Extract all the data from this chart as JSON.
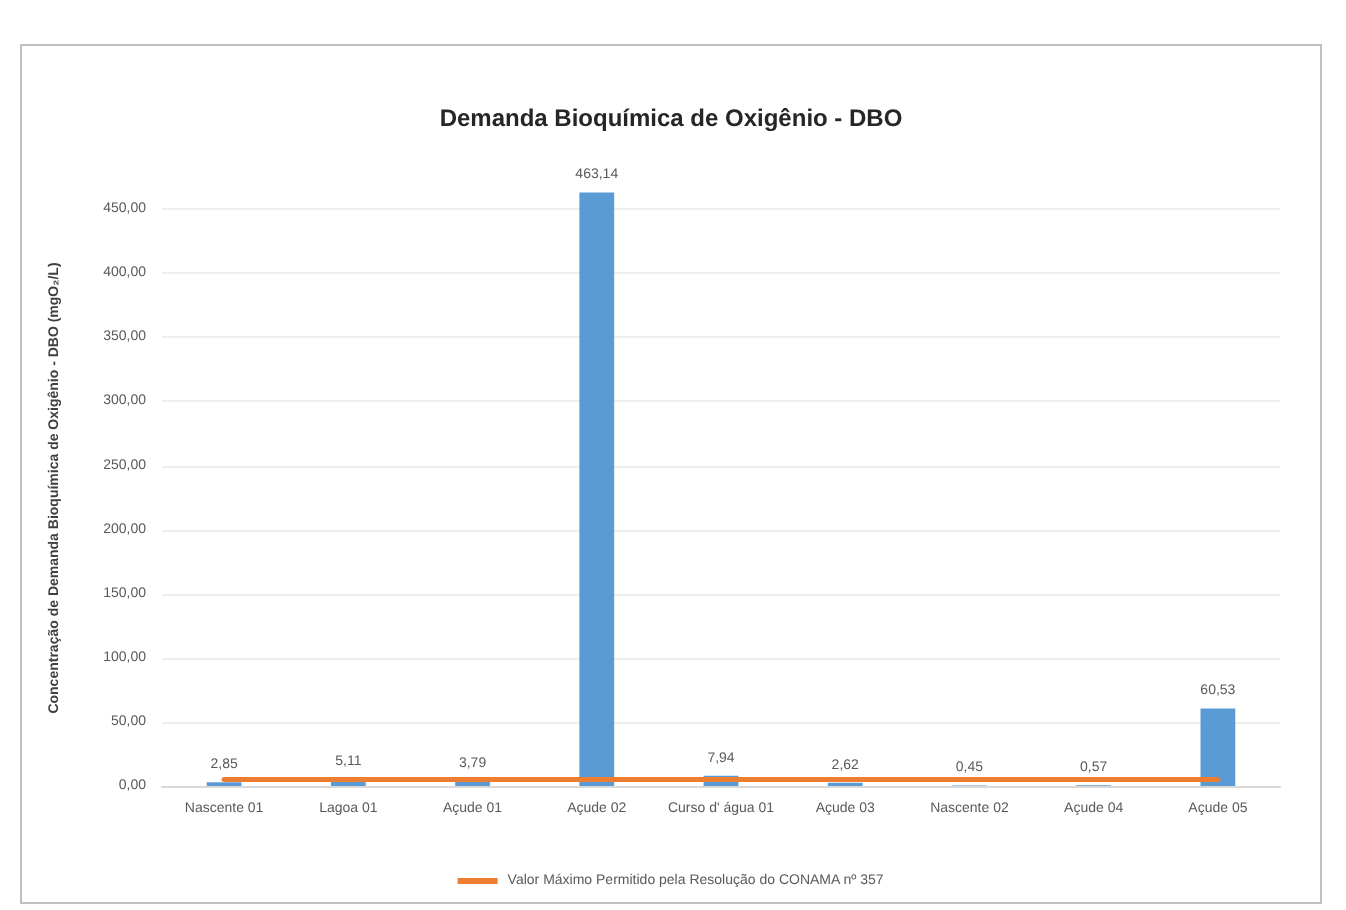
{
  "chart_data": {
    "type": "bar",
    "title": "Demanda Bioquímica de Oxigênio - DBO",
    "ylabel": "Concentração de Demanda Bioquímica de Oxigênio - DBO (mgO₂/L)",
    "categories": [
      "Nascente 01",
      "Lagoa 01",
      "Açude 01",
      "Açude 02",
      "Curso d' água 01",
      "Açude 03",
      "Nascente 02",
      "Açude 04",
      "Açude 05"
    ],
    "series": [
      {
        "color": "#5b9bd5",
        "values": [
          2.85,
          5.11,
          3.79,
          463.14,
          7.94,
          2.62,
          0.45,
          0.57,
          60.53
        ],
        "value_labels": [
          "2,85",
          "5,11",
          "3,79",
          "463,14",
          "7,94",
          "2,62",
          "0,45",
          "0,57",
          "60,53"
        ]
      },
      {
        "type": "line",
        "name": "Valor Máximo Permitido pela Resolução do CONAMA nº 357",
        "color": "#ed7d31",
        "values": [
          5,
          5,
          5,
          5,
          5,
          5,
          5,
          5,
          5
        ],
        "marker": "none"
      }
    ],
    "ylim": [
      0,
      465
    ],
    "yticks": [
      {
        "value": 0,
        "label": "0,00"
      },
      {
        "value": 50,
        "label": "50,00"
      },
      {
        "value": 100,
        "label": "100,00"
      },
      {
        "value": 150,
        "label": "150,00"
      },
      {
        "value": 200,
        "label": "200,00"
      },
      {
        "value": 250,
        "label": "250,00"
      },
      {
        "value": 300,
        "label": "300,00"
      },
      {
        "value": 350,
        "label": "350,00"
      },
      {
        "value": 400,
        "label": "400,00"
      },
      {
        "value": 450,
        "label": "450,00"
      }
    ],
    "grid": "y",
    "legend": "bottom"
  }
}
